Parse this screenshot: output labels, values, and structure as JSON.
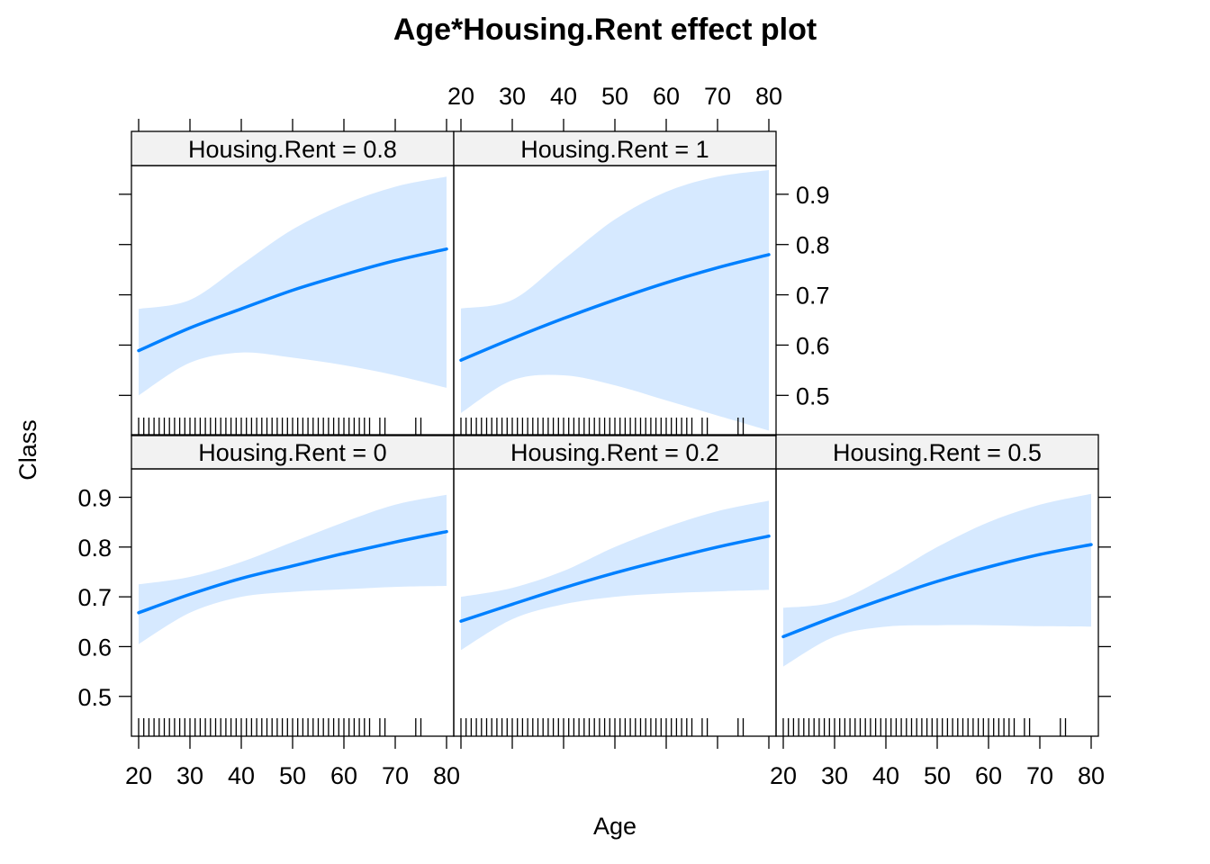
{
  "chart_data": {
    "type": "line",
    "title": "Age*Housing.Rent effect plot",
    "xlabel": "Age",
    "ylabel": "Class",
    "xlim": [
      18.6,
      81.4
    ],
    "ylim": [
      0.42,
      0.957
    ],
    "x_ticks": [
      20,
      30,
      40,
      50,
      60,
      70,
      80
    ],
    "x_tick_labels": [
      "20",
      "30",
      "40",
      "50",
      "60",
      "70",
      "80"
    ],
    "y_ticks": [
      0.5,
      0.6,
      0.7,
      0.8,
      0.9
    ],
    "y_tick_labels": [
      "0.5",
      "0.6",
      "0.7",
      "0.8",
      "0.9"
    ],
    "line_color": "#0080ff",
    "band_color": "#d6e9ff",
    "strip_color": "#f2f2f2",
    "rug_ages": [
      20,
      21,
      22,
      23,
      24,
      25,
      26,
      27,
      28,
      29,
      30,
      31,
      32,
      33,
      34,
      35,
      36,
      37,
      38,
      39,
      40,
      41,
      42,
      43,
      44,
      45,
      46,
      47,
      48,
      49,
      50,
      51,
      52,
      53,
      54,
      55,
      56,
      57,
      58,
      59,
      60,
      61,
      62,
      63,
      64,
      65,
      67,
      68,
      74,
      75
    ],
    "panels": [
      {
        "label": "Housing.Rent = 0",
        "x": [
          20,
          30,
          40,
          50,
          60,
          70,
          80
        ],
        "fit": [
          0.668,
          0.705,
          0.737,
          0.762,
          0.787,
          0.81,
          0.831
        ],
        "lower": [
          0.605,
          0.668,
          0.7,
          0.71,
          0.715,
          0.72,
          0.722
        ],
        "upper": [
          0.725,
          0.74,
          0.77,
          0.81,
          0.85,
          0.885,
          0.905
        ]
      },
      {
        "label": "Housing.Rent = 0.2",
        "x": [
          20,
          30,
          40,
          50,
          60,
          70,
          80
        ],
        "fit": [
          0.651,
          0.685,
          0.718,
          0.748,
          0.775,
          0.8,
          0.822
        ],
        "lower": [
          0.593,
          0.655,
          0.685,
          0.7,
          0.707,
          0.711,
          0.714
        ],
        "upper": [
          0.7,
          0.718,
          0.752,
          0.8,
          0.84,
          0.872,
          0.893
        ]
      },
      {
        "label": "Housing.Rent = 0.5",
        "x": [
          20,
          30,
          40,
          50,
          60,
          70,
          80
        ],
        "fit": [
          0.62,
          0.66,
          0.697,
          0.731,
          0.76,
          0.785,
          0.805
        ],
        "lower": [
          0.56,
          0.62,
          0.64,
          0.643,
          0.643,
          0.641,
          0.64
        ],
        "upper": [
          0.678,
          0.69,
          0.74,
          0.8,
          0.85,
          0.885,
          0.907
        ]
      },
      {
        "label": "Housing.Rent = 0.8",
        "x": [
          20,
          30,
          40,
          50,
          60,
          70,
          80
        ],
        "fit": [
          0.589,
          0.634,
          0.672,
          0.709,
          0.74,
          0.768,
          0.791
        ],
        "lower": [
          0.5,
          0.565,
          0.585,
          0.575,
          0.56,
          0.54,
          0.515
        ],
        "upper": [
          0.672,
          0.69,
          0.76,
          0.83,
          0.88,
          0.915,
          0.935
        ]
      },
      {
        "label": "Housing.Rent = 1",
        "x": [
          20,
          30,
          40,
          50,
          60,
          70,
          80
        ],
        "fit": [
          0.57,
          0.613,
          0.653,
          0.69,
          0.724,
          0.754,
          0.78
        ],
        "lower": [
          0.465,
          0.53,
          0.54,
          0.52,
          0.49,
          0.46,
          0.43
        ],
        "upper": [
          0.673,
          0.69,
          0.77,
          0.85,
          0.905,
          0.935,
          0.948
        ]
      }
    ]
  }
}
